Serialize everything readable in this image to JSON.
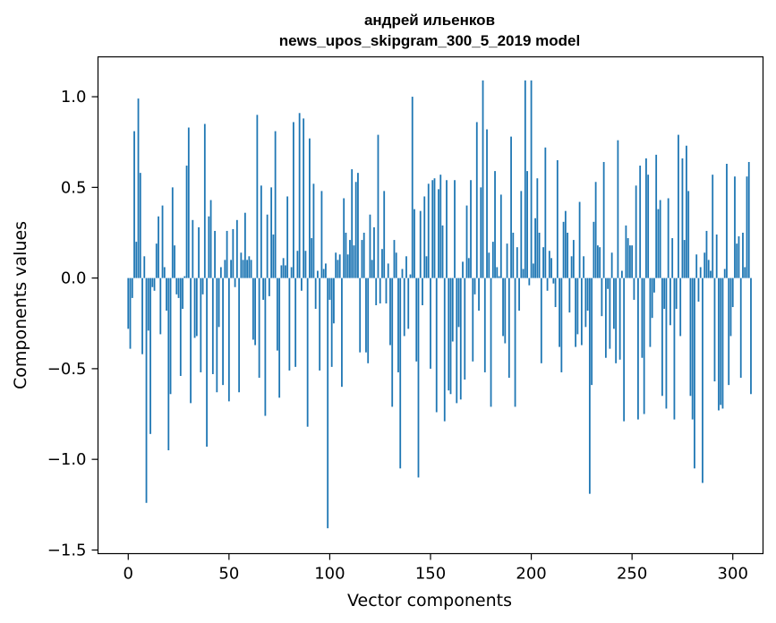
{
  "chart_data": {
    "type": "bar",
    "title": "андрей ильенков",
    "subtitle": "news_upos_skipgram_300_5_2019 model",
    "xlabel": "Vector components",
    "ylabel": "Components values",
    "xlim": [
      -15,
      315
    ],
    "ylim": [
      -1.52,
      1.22
    ],
    "x_ticks": [
      0,
      50,
      100,
      150,
      200,
      250,
      300
    ],
    "x_tick_labels": [
      "0",
      "50",
      "100",
      "150",
      "200",
      "250",
      "300"
    ],
    "y_ticks": [
      -1.5,
      -1.0,
      -0.5,
      0.0,
      0.5,
      1.0
    ],
    "y_tick_labels": [
      "−1.5",
      "−1.0",
      "−0.5",
      "0.0",
      "0.5",
      "1.0"
    ],
    "bar_color": "#1f77b4",
    "values": [
      -0.28,
      -0.39,
      -0.11,
      0.81,
      0.2,
      0.99,
      0.58,
      -0.42,
      0.12,
      -1.24,
      -0.29,
      -0.86,
      -0.05,
      -0.07,
      0.19,
      0.34,
      -0.31,
      0.4,
      0.06,
      -0.18,
      -0.95,
      -0.64,
      0.5,
      0.18,
      -0.09,
      -0.11,
      -0.54,
      -0.17,
      0.01,
      0.62,
      0.83,
      -0.69,
      0.32,
      -0.33,
      -0.32,
      0.28,
      -0.52,
      -0.09,
      0.85,
      -0.93,
      0.34,
      0.43,
      -0.53,
      0.26,
      -0.63,
      -0.27,
      0.06,
      -0.59,
      0.1,
      0.26,
      -0.68,
      0.1,
      0.27,
      -0.05,
      0.32,
      -0.63,
      0.14,
      0.1,
      0.36,
      0.1,
      0.12,
      0.1,
      -0.34,
      -0.37,
      0.9,
      -0.55,
      0.51,
      -0.12,
      -0.76,
      0.35,
      -0.1,
      0.5,
      0.24,
      0.81,
      -0.4,
      -0.66,
      0.07,
      0.11,
      0.07,
      0.45,
      -0.51,
      0.06,
      0.86,
      -0.49,
      0.15,
      0.91,
      -0.07,
      0.88,
      0.15,
      -0.82,
      0.77,
      0.22,
      0.52,
      -0.17,
      0.04,
      -0.51,
      0.48,
      0.05,
      0.08,
      -1.38,
      -0.12,
      -0.49,
      -0.25,
      0.14,
      0.1,
      0.13,
      -0.6,
      0.44,
      0.25,
      0.13,
      0.21,
      0.6,
      0.18,
      0.53,
      0.58,
      -0.41,
      0.21,
      0.25,
      -0.41,
      -0.47,
      0.35,
      0.1,
      0.28,
      -0.15,
      0.79,
      -0.14,
      0.16,
      0.48,
      -0.14,
      0.08,
      -0.37,
      -0.71,
      0.21,
      0.14,
      -0.52,
      -1.05,
      0.05,
      -0.32,
      0.12,
      -0.28,
      0.02,
      1.0,
      0.38,
      -0.46,
      -1.1,
      0.37,
      -0.15,
      0.45,
      0.12,
      0.52,
      -0.5,
      0.54,
      0.55,
      -0.74,
      0.49,
      0.57,
      0.29,
      -0.79,
      0.54,
      -0.62,
      -0.64,
      -0.35,
      0.54,
      -0.69,
      -0.27,
      -0.67,
      0.09,
      -0.56,
      0.4,
      0.11,
      0.54,
      -0.46,
      -0.09,
      0.86,
      -0.18,
      0.5,
      1.09,
      -0.52,
      0.82,
      0.14,
      -0.71,
      0.2,
      0.59,
      0.06,
      0.01,
      0.46,
      -0.32,
      -0.36,
      0.19,
      -0.55,
      0.78,
      0.25,
      -0.71,
      0.17,
      -0.18,
      0.48,
      0.05,
      1.09,
      0.59,
      -0.04,
      1.09,
      0.08,
      0.33,
      0.55,
      0.25,
      -0.47,
      0.17,
      0.72,
      -0.07,
      0.15,
      0.11,
      -0.03,
      -0.16,
      0.65,
      -0.38,
      -0.52,
      0.31,
      0.37,
      0.25,
      -0.19,
      0.12,
      0.21,
      -0.38,
      -0.31,
      0.42,
      -0.37,
      0.12,
      -0.27,
      -0.18,
      -1.19,
      -0.59,
      0.31,
      0.53,
      0.18,
      0.17,
      -0.21,
      0.64,
      -0.44,
      -0.06,
      -0.39,
      0.14,
      -0.28,
      -0.47,
      0.76,
      -0.45,
      0.04,
      -0.79,
      0.29,
      0.22,
      0.18,
      0.18,
      -0.12,
      0.51,
      -0.78,
      0.62,
      -0.44,
      -0.75,
      0.66,
      0.57,
      -0.38,
      -0.22,
      -0.08,
      0.68,
      0.38,
      0.43,
      -0.65,
      -0.17,
      -0.72,
      0.44,
      -0.26,
      0.22,
      -0.78,
      -0.17,
      0.79,
      -0.32,
      0.66,
      0.21,
      0.73,
      0.48,
      -0.65,
      -0.78,
      -1.05,
      0.13,
      -0.13,
      0.06,
      -1.13,
      0.14,
      0.26,
      0.1,
      0.04,
      0.57,
      -0.57,
      0.24,
      -0.73,
      -0.7,
      -0.72,
      0.05,
      0.63,
      -0.59,
      -0.32,
      -0.16,
      0.56,
      0.19,
      0.23,
      -0.55,
      0.25,
      0.06,
      0.56,
      0.64,
      -0.64
    ]
  }
}
